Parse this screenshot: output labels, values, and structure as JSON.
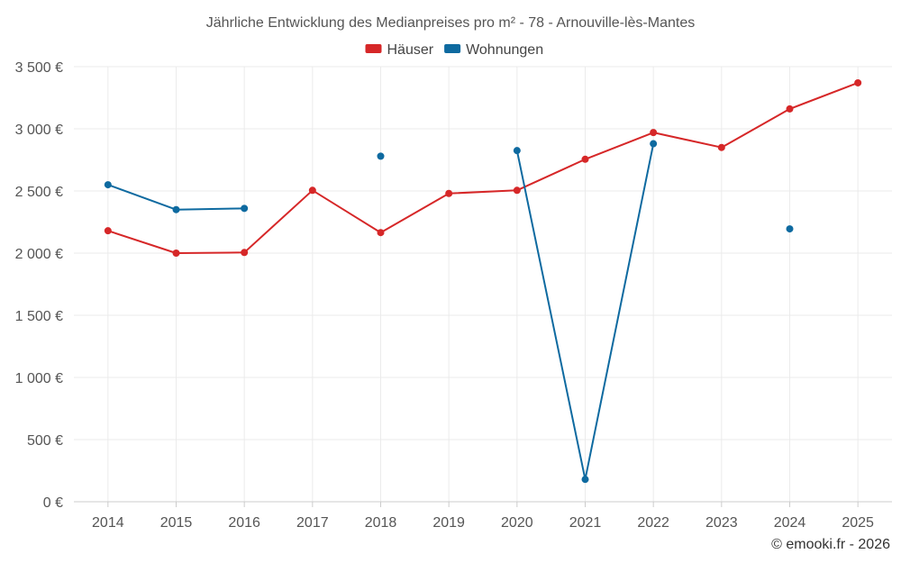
{
  "chart_data": {
    "type": "line",
    "title": "Jährliche Entwicklung des Medianpreises pro m² - 78 - Arnouville-lès-Mantes",
    "x": [
      "2014",
      "2015",
      "2016",
      "2017",
      "2018",
      "2019",
      "2020",
      "2021",
      "2022",
      "2023",
      "2024",
      "2025"
    ],
    "ylim": [
      0,
      3500
    ],
    "yticks": [
      0,
      500,
      1000,
      1500,
      2000,
      2500,
      3000,
      3500
    ],
    "ytick_labels": [
      "0 €",
      "500 €",
      "1 000 €",
      "1 500 €",
      "2 000 €",
      "2 500 €",
      "3 000 €",
      "3 500 €"
    ],
    "legend_position": "top-center",
    "series": [
      {
        "name": "Häuser",
        "color": "#d62728",
        "values": [
          2180,
          2000,
          2005,
          2505,
          2165,
          2480,
          2505,
          2755,
          2970,
          2850,
          3160,
          3370
        ]
      },
      {
        "name": "Wohnungen",
        "color": "#0e6aa0",
        "values": [
          2550,
          2350,
          2360,
          null,
          2780,
          null,
          2825,
          180,
          2880,
          null,
          2195,
          null
        ]
      }
    ]
  },
  "credit": "© emooki.fr - 2026"
}
